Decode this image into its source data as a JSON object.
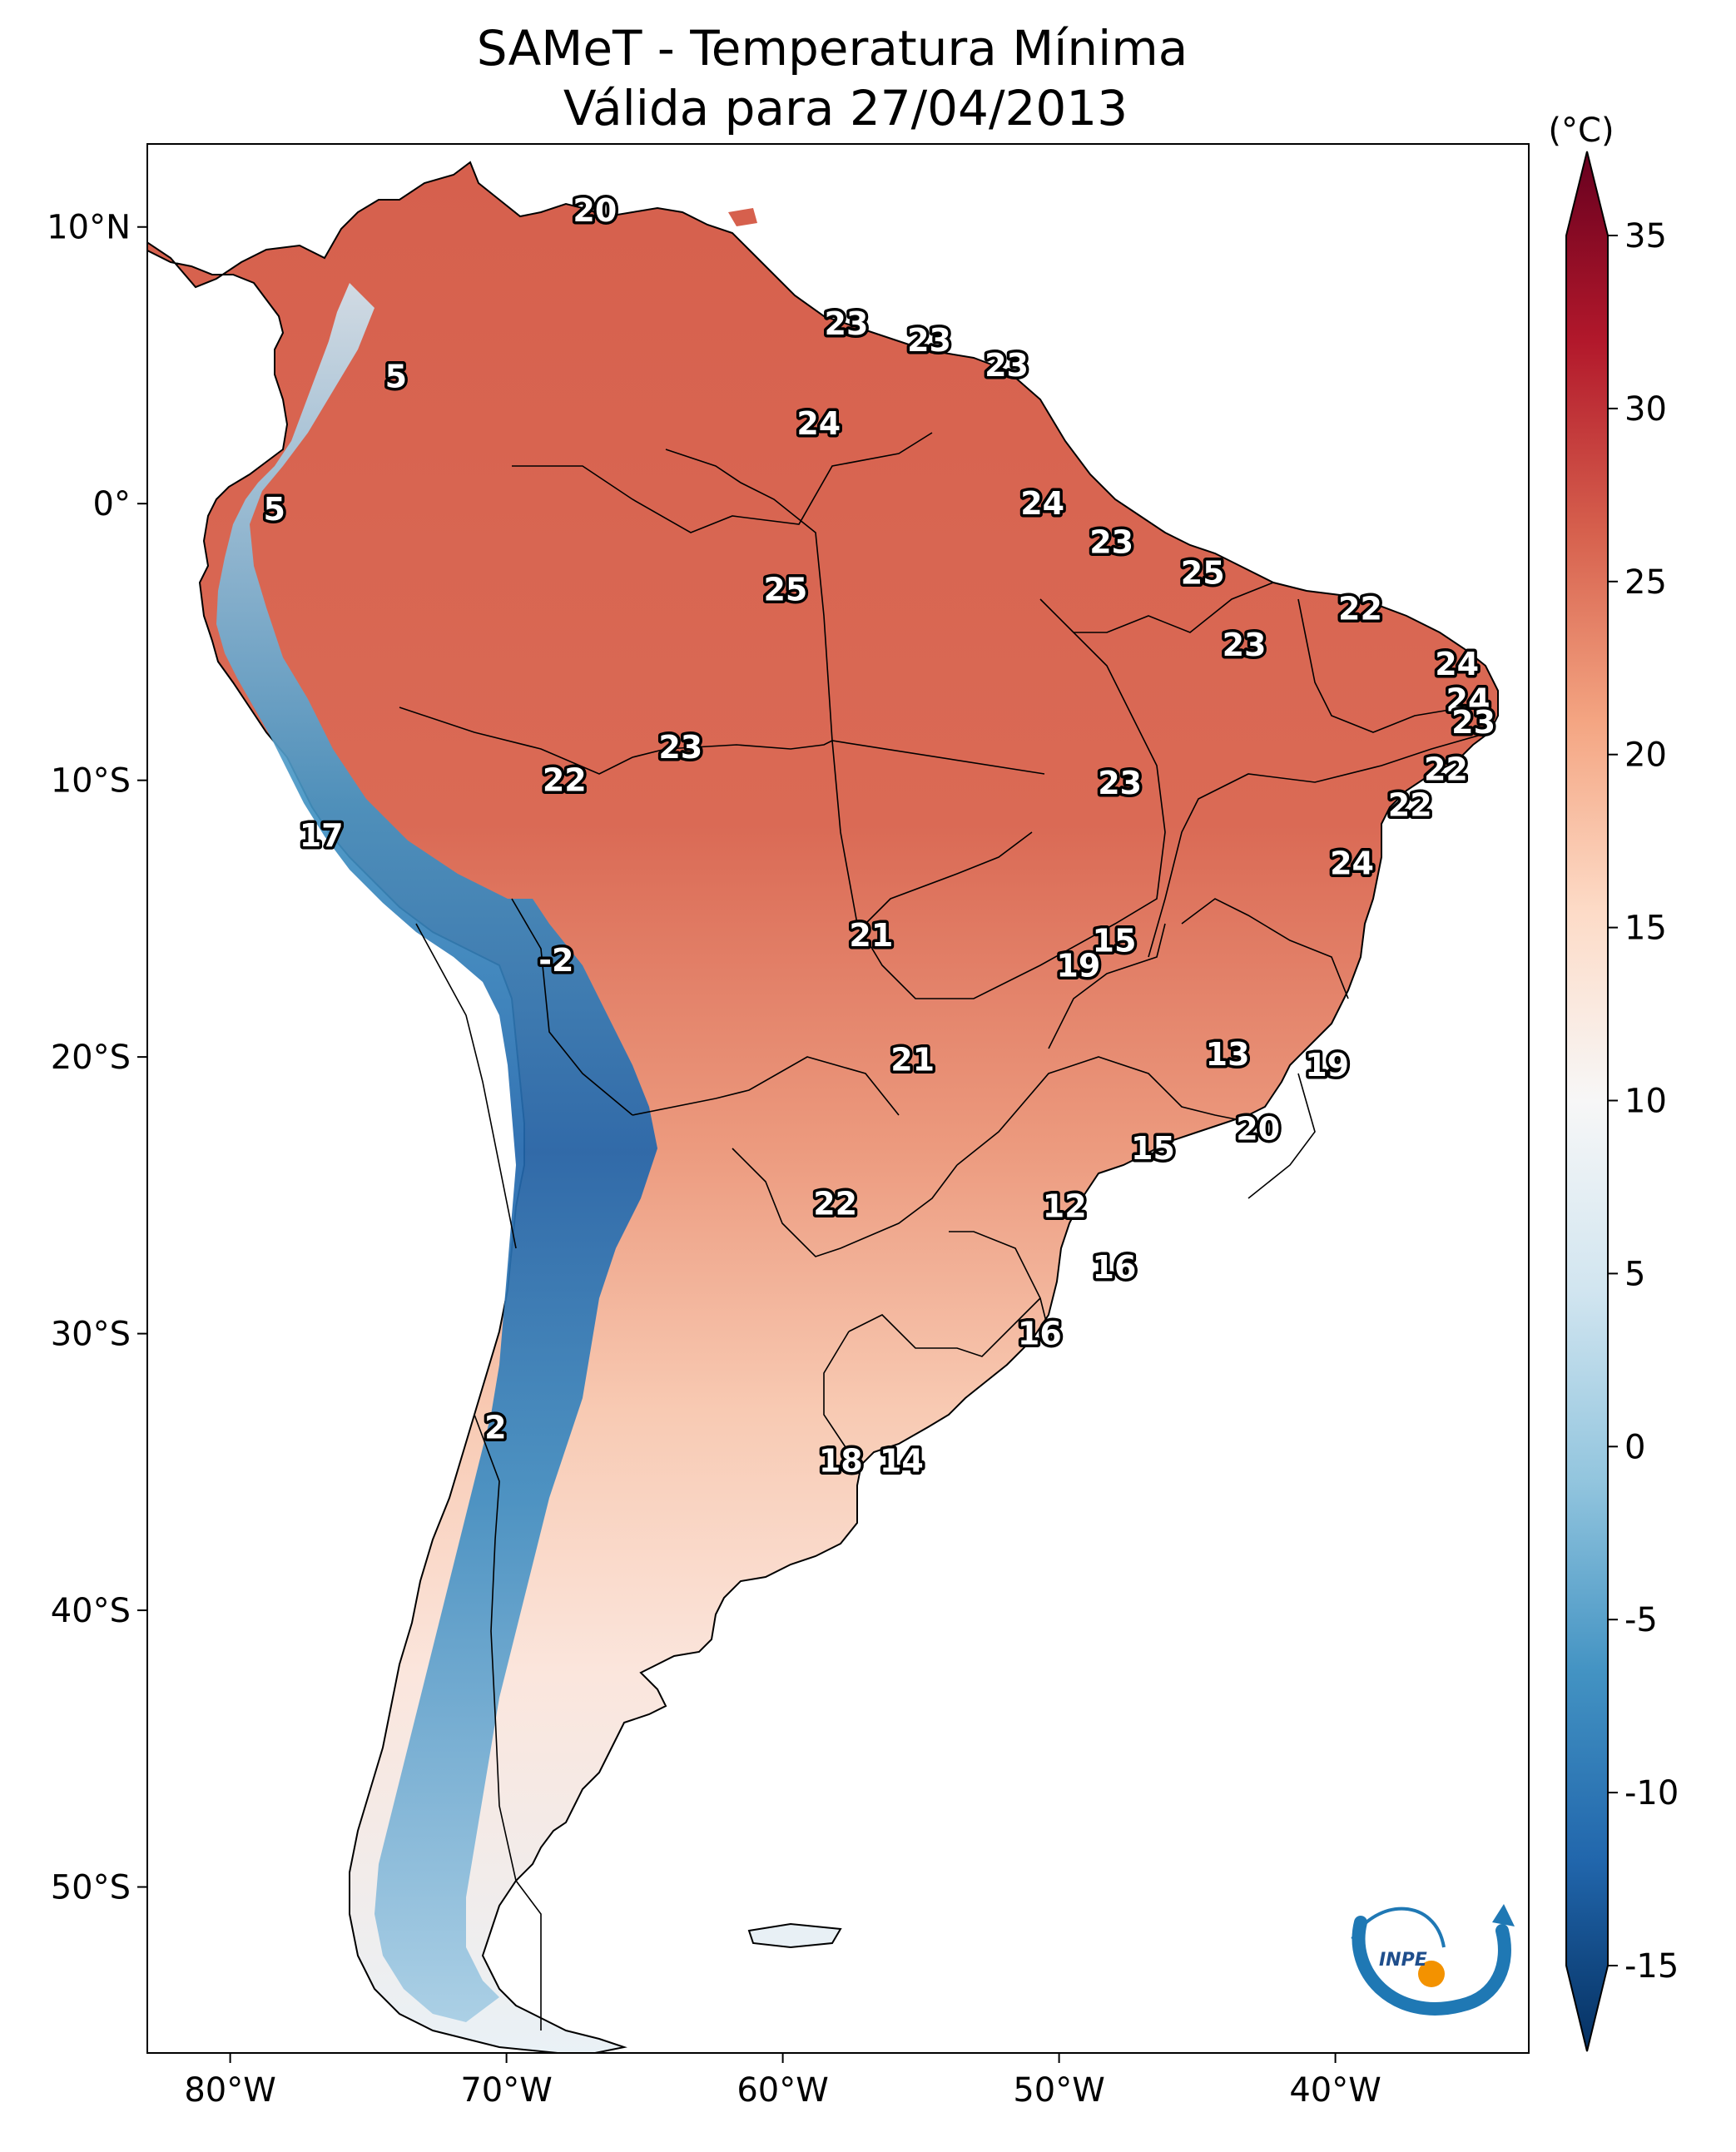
{
  "title": {
    "line1": "SAMeT - Temperatura Mínima",
    "line2": "Válida para 27/04/2013"
  },
  "colorbar": {
    "unit": "(°C)",
    "ticks": [
      "35",
      "30",
      "25",
      "20",
      "15",
      "10",
      "5",
      "0",
      "-5",
      "-10",
      "-15"
    ],
    "range": [
      -15,
      35
    ],
    "colormap": "RdBu_r",
    "colors": [
      "#053061",
      "#2166ac",
      "#4393c3",
      "#92c5de",
      "#d1e5f0",
      "#f7f7f7",
      "#fddbc7",
      "#f4a582",
      "#d6604d",
      "#b2182b",
      "#67001f"
    ]
  },
  "map": {
    "lat_ticks": [
      "10°N",
      "0°",
      "10°S",
      "20°S",
      "30°S",
      "40°S",
      "50°S"
    ],
    "lon_ticks": [
      "80°W",
      "70°W",
      "60°W",
      "50°W",
      "40°W"
    ],
    "extent": {
      "lon": [
        -83,
        -33
      ],
      "lat": [
        -56,
        13
      ]
    },
    "labels": [
      {
        "value": "20",
        "lon": -66.8,
        "lat": 10.6
      },
      {
        "value": "23",
        "lon": -57.7,
        "lat": 6.5
      },
      {
        "value": "23",
        "lon": -54.7,
        "lat": 5.9
      },
      {
        "value": "23",
        "lon": -51.9,
        "lat": 5.0
      },
      {
        "value": "5",
        "lon": -74.0,
        "lat": 4.6
      },
      {
        "value": "24",
        "lon": -58.7,
        "lat": 2.9
      },
      {
        "value": "5",
        "lon": -78.4,
        "lat": -0.2
      },
      {
        "value": "24",
        "lon": -50.6,
        "lat": 0.0
      },
      {
        "value": "23",
        "lon": -48.1,
        "lat": -1.4
      },
      {
        "value": "25",
        "lon": -44.8,
        "lat": -2.5
      },
      {
        "value": "25",
        "lon": -59.9,
        "lat": -3.1
      },
      {
        "value": "22",
        "lon": -39.1,
        "lat": -3.8
      },
      {
        "value": "23",
        "lon": -43.3,
        "lat": -5.1
      },
      {
        "value": "24",
        "lon": -35.6,
        "lat": -5.8
      },
      {
        "value": "24",
        "lon": -35.2,
        "lat": -7.1
      },
      {
        "value": "23",
        "lon": -35.0,
        "lat": -7.9
      },
      {
        "value": "23",
        "lon": -63.7,
        "lat": -8.8
      },
      {
        "value": "22",
        "lon": -67.9,
        "lat": -10.0
      },
      {
        "value": "22",
        "lon": -36.0,
        "lat": -9.6
      },
      {
        "value": "23",
        "lon": -47.8,
        "lat": -10.1
      },
      {
        "value": "22",
        "lon": -37.3,
        "lat": -10.9
      },
      {
        "value": "17",
        "lon": -76.7,
        "lat": -12.0
      },
      {
        "value": "24",
        "lon": -39.4,
        "lat": -13.0
      },
      {
        "value": "21",
        "lon": -56.8,
        "lat": -15.6
      },
      {
        "value": "15",
        "lon": -48.0,
        "lat": -15.8
      },
      {
        "value": "19",
        "lon": -49.3,
        "lat": -16.7
      },
      {
        "value": "-2",
        "lon": -68.2,
        "lat": -16.5
      },
      {
        "value": "13",
        "lon": -43.9,
        "lat": -19.9
      },
      {
        "value": "21",
        "lon": -55.3,
        "lat": -20.1
      },
      {
        "value": "19",
        "lon": -40.3,
        "lat": -20.3
      },
      {
        "value": "20",
        "lon": -42.8,
        "lat": -22.6
      },
      {
        "value": "15",
        "lon": -46.6,
        "lat": -23.3
      },
      {
        "value": "22",
        "lon": -58.1,
        "lat": -25.3
      },
      {
        "value": "12",
        "lon": -49.8,
        "lat": -25.4
      },
      {
        "value": "16",
        "lon": -48.0,
        "lat": -27.6
      },
      {
        "value": "16",
        "lon": -50.7,
        "lat": -30.0
      },
      {
        "value": "2",
        "lon": -70.4,
        "lat": -33.4
      },
      {
        "value": "18",
        "lon": -57.9,
        "lat": -34.6
      },
      {
        "value": "14",
        "lon": -55.7,
        "lat": -34.6
      }
    ]
  },
  "logo": {
    "text": "INPE"
  }
}
